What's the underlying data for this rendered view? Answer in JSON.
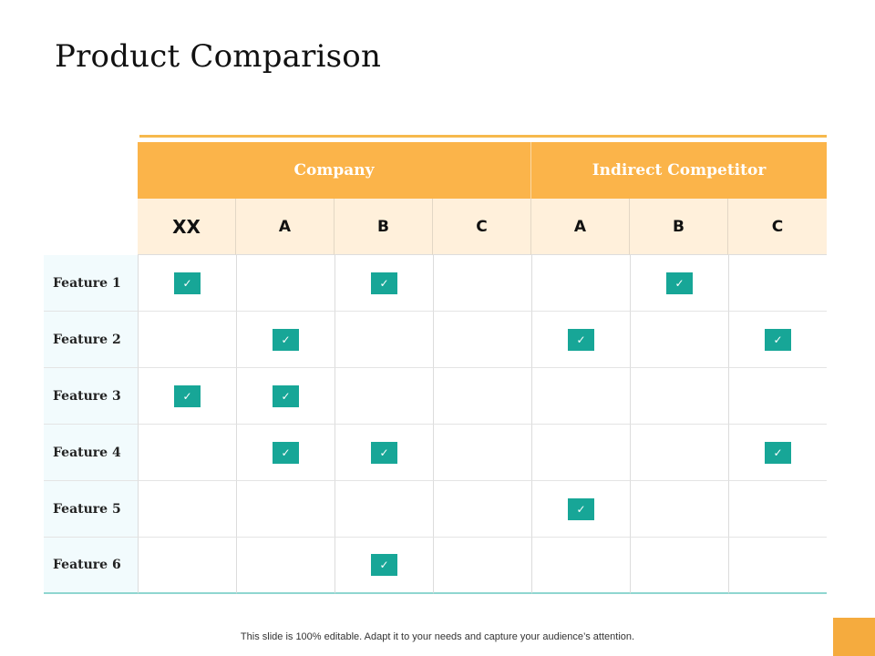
{
  "title": "Product Comparison",
  "groups": {
    "company": "Company",
    "indirect": "Indirect Competitor"
  },
  "columns": [
    "XX",
    "A",
    "B",
    "C",
    "A",
    "B",
    "C"
  ],
  "check_glyph": "✓",
  "rows": [
    {
      "label": "Feature 1",
      "checks": [
        true,
        false,
        true,
        false,
        false,
        true,
        false
      ]
    },
    {
      "label": "Feature 2",
      "checks": [
        false,
        true,
        false,
        false,
        true,
        false,
        true
      ]
    },
    {
      "label": "Feature 3",
      "checks": [
        true,
        true,
        false,
        false,
        false,
        false,
        false
      ]
    },
    {
      "label": "Feature 4",
      "checks": [
        false,
        true,
        true,
        false,
        false,
        false,
        true
      ]
    },
    {
      "label": "Feature 5",
      "checks": [
        false,
        false,
        false,
        false,
        true,
        false,
        false
      ]
    },
    {
      "label": "Feature 6",
      "checks": [
        false,
        false,
        true,
        false,
        false,
        false,
        false
      ]
    }
  ],
  "footer": "This slide is 100% editable. Adapt it to your needs and capture your audience’s attention.",
  "colors": {
    "header_orange": "#fbb44a",
    "subheader_cream": "#fff0db",
    "check_teal": "#17a697",
    "feature_bg": "#f2fbfd",
    "accent_line": "#f6b94c"
  }
}
